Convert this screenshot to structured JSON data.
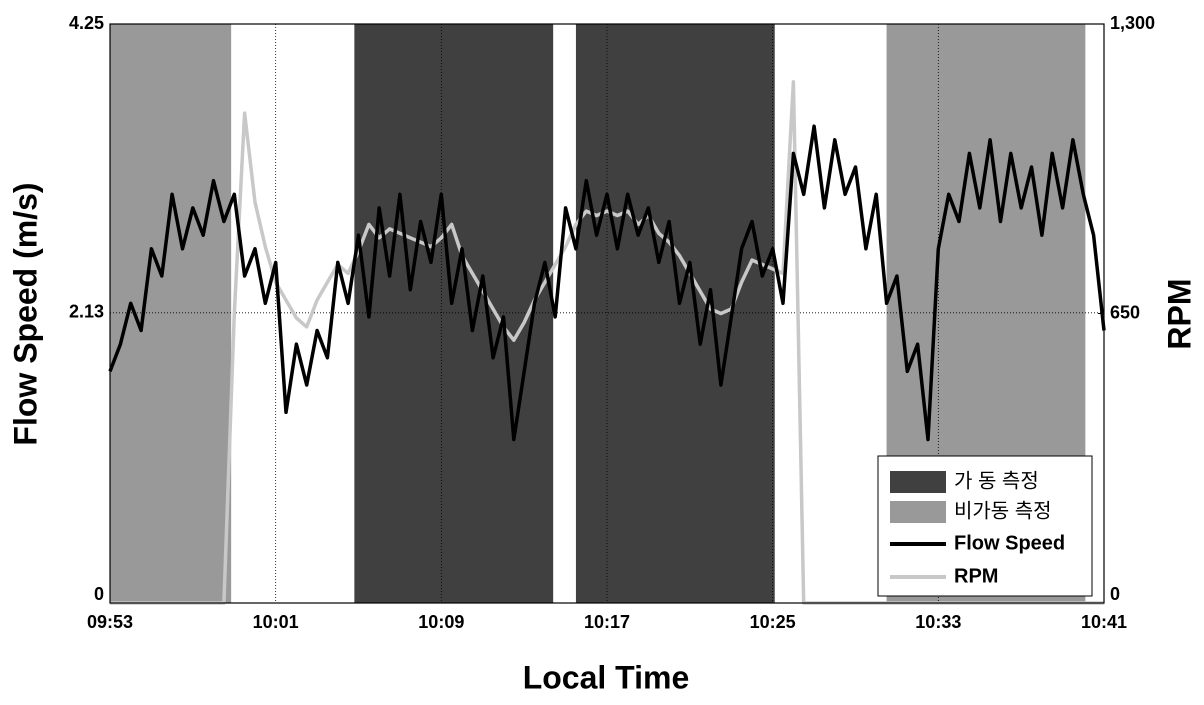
{
  "chart_data": {
    "type": "line",
    "xlabel": "Local Time",
    "ylabel": "Flow Speed (m/s)",
    "y2label": "RPM",
    "xlim": [
      593,
      641
    ],
    "xticks": [
      {
        "value": 593,
        "label": "09:53"
      },
      {
        "value": 601,
        "label": "10:01"
      },
      {
        "value": 609,
        "label": "10:09"
      },
      {
        "value": 617,
        "label": "10:17"
      },
      {
        "value": 625,
        "label": "10:25"
      },
      {
        "value": 633,
        "label": "10:33"
      },
      {
        "value": 641,
        "label": "10:41"
      }
    ],
    "ylim": [
      0,
      4.25
    ],
    "yticks": [
      0,
      2.13,
      4.25
    ],
    "y2lim": [
      0,
      1300
    ],
    "y2ticks": [
      0,
      650,
      {
        "value": 1300,
        "label": "1,300"
      }
    ],
    "grid": true,
    "legend": "lower right",
    "shaded": [
      {
        "name": "가 동 측정",
        "color": "#404040",
        "spans": [
          [
            604.8,
            614.4
          ],
          [
            615.5,
            625.1
          ]
        ]
      },
      {
        "name": "비가동 측정",
        "color": "#999999",
        "spans": [
          [
            593,
            598.85
          ],
          [
            630.5,
            640.1
          ]
        ]
      }
    ],
    "x": [
      593,
      593.5,
      594,
      594.5,
      595,
      595.5,
      596,
      596.5,
      597,
      597.5,
      598,
      598.5,
      599,
      599.5,
      600,
      600.5,
      601,
      601.5,
      602,
      602.5,
      603,
      603.5,
      604,
      604.5,
      605,
      605.5,
      606,
      606.5,
      607,
      607.5,
      608,
      608.5,
      609,
      609.5,
      610,
      610.5,
      611,
      611.5,
      612,
      612.5,
      613,
      613.5,
      614,
      614.5,
      615,
      615.5,
      616,
      616.5,
      617,
      617.5,
      618,
      618.5,
      619,
      619.5,
      620,
      620.5,
      621,
      621.5,
      622,
      622.5,
      623,
      623.5,
      624,
      624.5,
      625,
      625.5,
      626,
      626.5,
      627,
      627.5,
      628,
      628.5,
      629,
      629.5,
      630,
      630.5,
      631,
      631.5,
      632,
      632.5,
      633,
      633.5,
      634,
      634.5,
      635,
      635.5,
      636,
      636.5,
      637,
      637.5,
      638,
      638.5,
      639,
      639.5,
      640,
      640.5,
      641
    ],
    "series": [
      {
        "name": "Flow Speed",
        "color": "#000000",
        "axis": "y",
        "values": [
          1.7,
          1.9,
          2.2,
          2.0,
          2.6,
          2.4,
          3.0,
          2.6,
          2.9,
          2.7,
          3.1,
          2.8,
          3.0,
          2.4,
          2.6,
          2.2,
          2.5,
          1.4,
          1.9,
          1.6,
          2.0,
          1.8,
          2.5,
          2.2,
          2.7,
          2.1,
          2.9,
          2.4,
          3.0,
          2.3,
          2.8,
          2.5,
          3.0,
          2.2,
          2.6,
          2.0,
          2.4,
          1.8,
          2.1,
          1.2,
          1.7,
          2.2,
          2.5,
          2.1,
          2.9,
          2.6,
          3.1,
          2.7,
          3.0,
          2.6,
          3.0,
          2.7,
          2.9,
          2.5,
          2.8,
          2.2,
          2.5,
          1.9,
          2.3,
          1.6,
          2.1,
          2.6,
          2.8,
          2.4,
          2.6,
          2.2,
          3.3,
          3.0,
          3.5,
          2.9,
          3.4,
          3.0,
          3.2,
          2.6,
          3.0,
          2.2,
          2.4,
          1.7,
          1.9,
          1.2,
          2.6,
          3.0,
          2.8,
          3.3,
          2.9,
          3.4,
          2.8,
          3.3,
          2.9,
          3.2,
          2.7,
          3.3,
          2.9,
          3.4,
          3.0,
          2.7,
          2.0
        ]
      },
      {
        "name": "RPM",
        "color": "#c8c8c8",
        "axis": "y2",
        "values": [
          0,
          0,
          0,
          0,
          0,
          0,
          0,
          0,
          0,
          0,
          0,
          0,
          650,
          1100,
          900,
          800,
          720,
          680,
          640,
          620,
          680,
          720,
          760,
          740,
          790,
          850,
          820,
          840,
          830,
          820,
          810,
          800,
          820,
          850,
          780,
          740,
          700,
          660,
          620,
          590,
          630,
          680,
          720,
          760,
          800,
          850,
          880,
          870,
          880,
          870,
          880,
          850,
          870,
          830,
          810,
          780,
          740,
          700,
          660,
          650,
          660,
          720,
          770,
          760,
          750,
          740,
          1170,
          0,
          0,
          0,
          0,
          0,
          0,
          0,
          0,
          0,
          0,
          0,
          0,
          0,
          0,
          0,
          0,
          0,
          0,
          0,
          0,
          0,
          0,
          0,
          0,
          0,
          0,
          0,
          0,
          0,
          0
        ]
      }
    ]
  }
}
